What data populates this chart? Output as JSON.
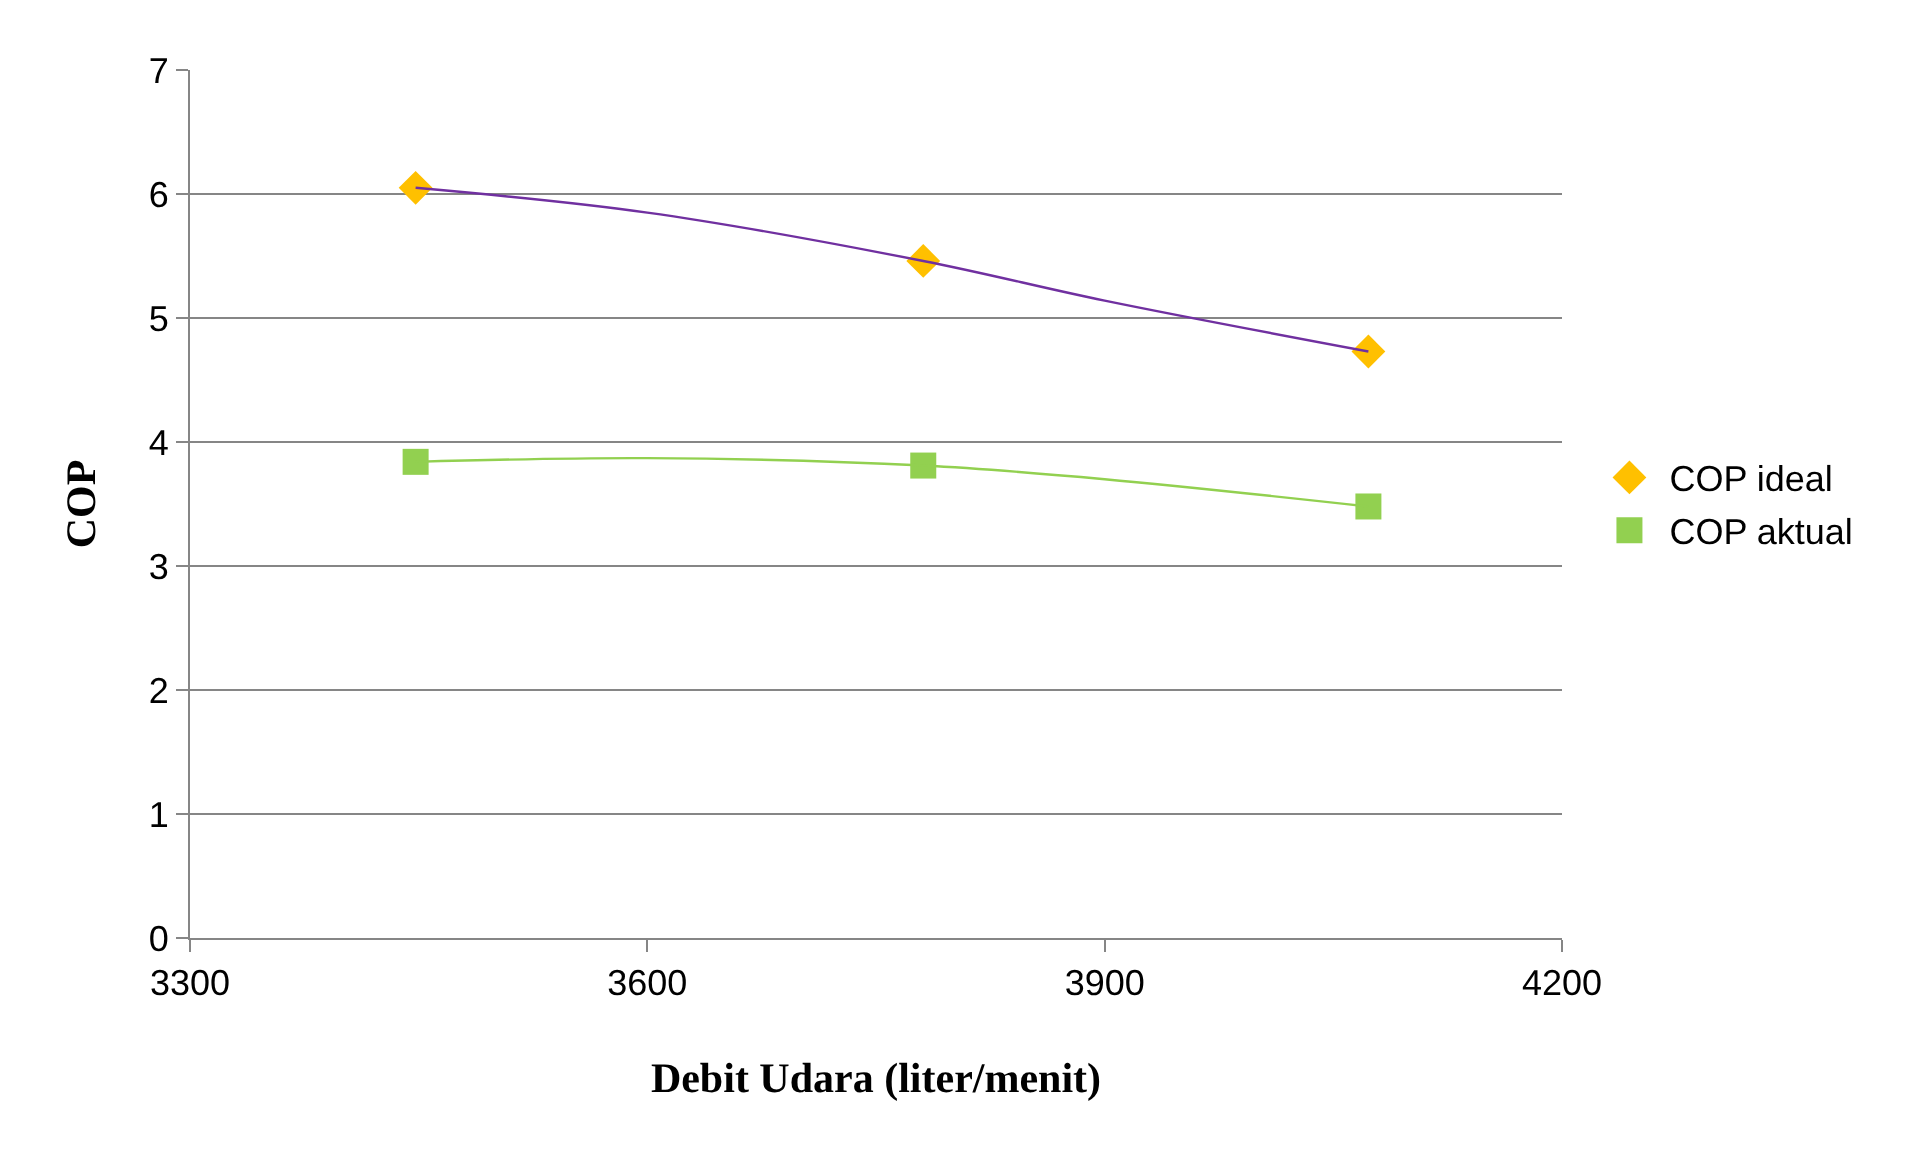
{
  "chart_data": {
    "type": "scatter",
    "xlabel": "Debit Udara (liter/menit)",
    "ylabel": "COP",
    "xlim": [
      3300,
      4200
    ],
    "xticks": [
      3300,
      3600,
      3900,
      4200
    ],
    "ylim": [
      0,
      7
    ],
    "yticks": [
      0,
      1,
      2,
      3,
      4,
      5,
      6,
      7
    ],
    "grid": "y",
    "legend": "right",
    "series": [
      {
        "name": "COP ideal",
        "color": "#ffc000",
        "marker": "diamond",
        "x": [
          3448,
          3781,
          4073
        ],
        "values": [
          6.05,
          5.46,
          4.73
        ]
      },
      {
        "name": "COP aktual",
        "color": "#92d050",
        "marker": "square",
        "x": [
          3448,
          3781,
          4073
        ],
        "values": [
          3.84,
          3.81,
          3.48
        ]
      },
      {
        "type": "line",
        "color": "#7030a0",
        "marker": "none",
        "x": [
          3448,
          3600,
          3781,
          3900,
          4073
        ],
        "values": [
          6.05,
          5.85,
          5.46,
          5.14,
          4.73
        ]
      },
      {
        "type": "line",
        "color": "#92d050",
        "marker": "none",
        "x": [
          3448,
          3600,
          3781,
          3900,
          4073
        ],
        "values": [
          3.84,
          3.87,
          3.81,
          3.7,
          3.48
        ]
      }
    ]
  }
}
